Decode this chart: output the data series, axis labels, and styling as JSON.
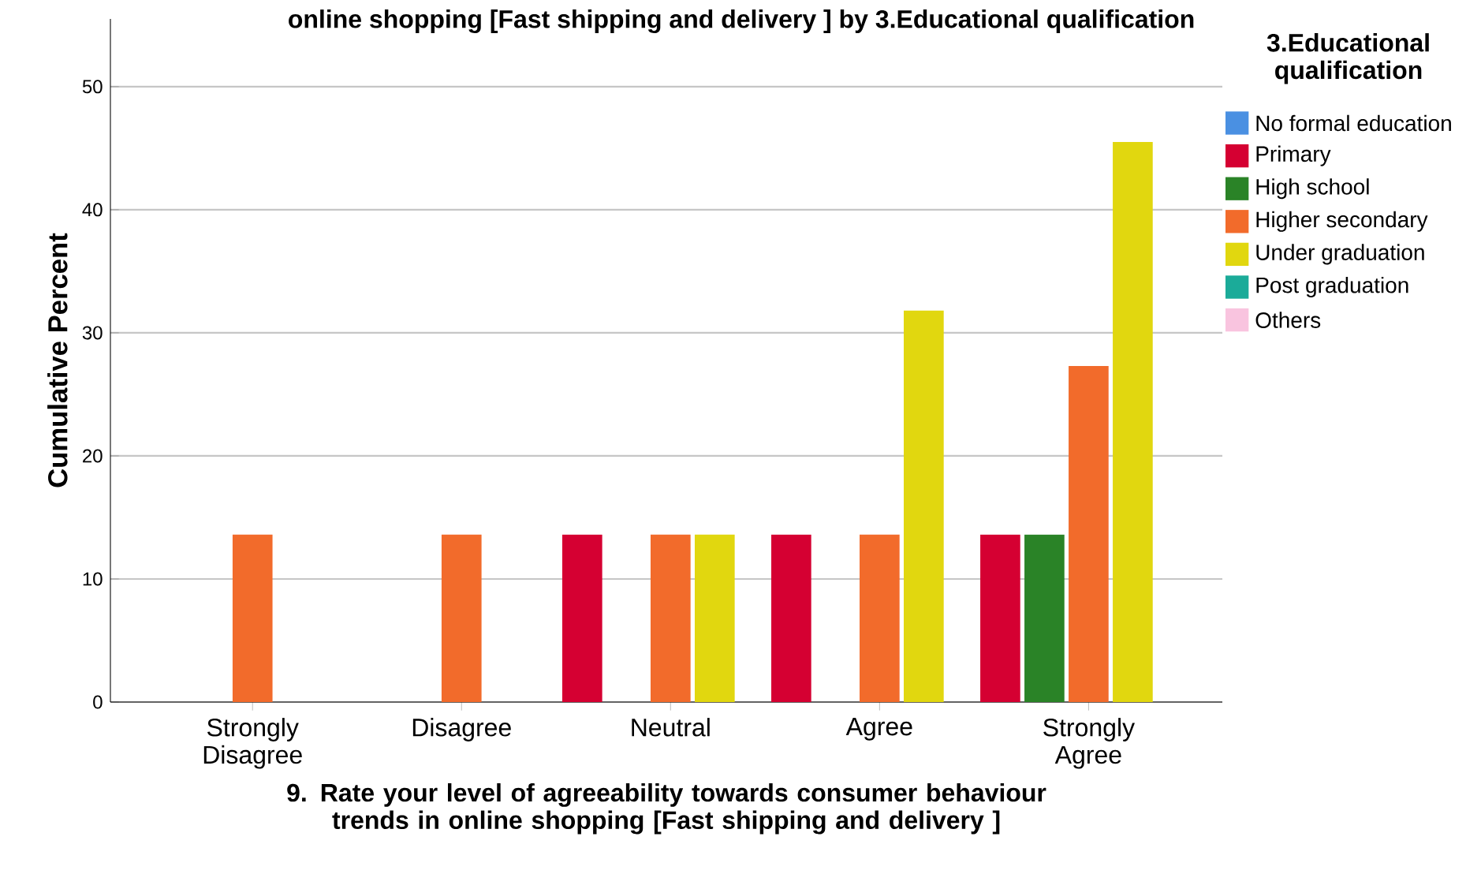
{
  "chart_data": {
    "type": "bar",
    "title": "online shopping [Fast shipping and delivery ] by 3.Educational qualification",
    "xlabel": "9. Rate your level of agreeability towards consumer behaviour trends in online shopping [Fast shipping and delivery ]",
    "ylabel": "Cumulative Percent",
    "legend_title": "3.Educational qualification",
    "categories": [
      "Strongly Disagree",
      "Disagree",
      "Neutral",
      "Agree",
      "Strongly Agree"
    ],
    "series": [
      {
        "name": "No formal education",
        "color": "#4a90e2",
        "values": [
          null,
          null,
          null,
          null,
          null
        ]
      },
      {
        "name": "Primary",
        "color": "#d50032",
        "values": [
          null,
          null,
          13.6,
          13.6,
          13.6
        ]
      },
      {
        "name": "High school",
        "color": "#2a8327",
        "values": [
          null,
          null,
          null,
          null,
          13.6
        ]
      },
      {
        "name": "Higher secondary",
        "color": "#f26b2b",
        "values": [
          13.6,
          13.6,
          13.6,
          13.6,
          27.3
        ]
      },
      {
        "name": "Under graduation",
        "color": "#e1d70f",
        "values": [
          null,
          null,
          13.6,
          31.8,
          45.5
        ]
      },
      {
        "name": "Post graduation",
        "color": "#1bab99",
        "values": [
          null,
          null,
          null,
          null,
          null
        ]
      },
      {
        "name": "Others",
        "color": "#f9c4df",
        "values": [
          null,
          null,
          null,
          null,
          null
        ]
      }
    ],
    "ylim": [
      0,
      55.5
    ],
    "yticks": [
      0,
      10,
      20,
      30,
      40,
      50
    ],
    "grid": "y",
    "legend": "right"
  }
}
